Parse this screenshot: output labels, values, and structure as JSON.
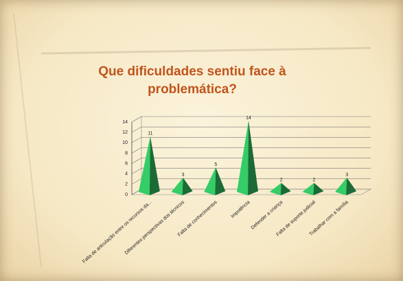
{
  "chart_data": {
    "type": "pyramid3d",
    "title": "Que dificuldades sentiu face à problemática?",
    "categories": [
      "Falta de articulação entre os recursos da...",
      "Diferentes perspectivas dos técnicos",
      "Falta de conhecimentos",
      "Impotência",
      "Defender a criança",
      "Falta de suporte judicial",
      "Trabalhar com a família"
    ],
    "values": [
      11,
      3,
      5,
      14,
      2,
      2,
      3
    ],
    "color": "#2db25a",
    "ylim": [
      0,
      14
    ],
    "yticks": [
      0,
      2,
      4,
      6,
      8,
      10,
      12,
      14
    ],
    "grid": true
  }
}
